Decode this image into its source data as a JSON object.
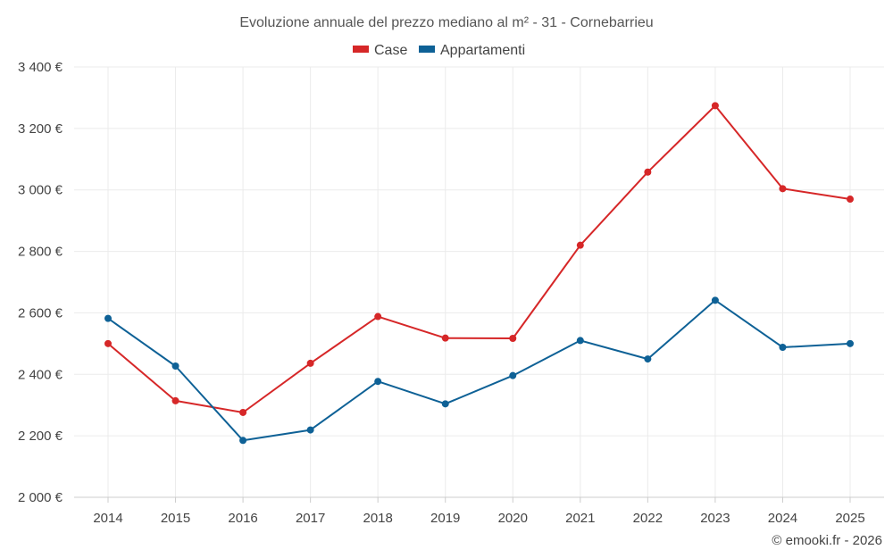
{
  "chart_data": {
    "type": "line",
    "title": "Evoluzione annuale del prezzo mediano al m² - 31 - Cornebarrieu",
    "categories": [
      "2014",
      "2015",
      "2016",
      "2017",
      "2018",
      "2019",
      "2020",
      "2021",
      "2022",
      "2023",
      "2024",
      "2025"
    ],
    "series": [
      {
        "name": "Case",
        "color": "#d62728",
        "values": [
          2500,
          2314,
          2276,
          2436,
          2588,
          2518,
          2517,
          2820,
          3058,
          3274,
          3004,
          2970
        ]
      },
      {
        "name": "Appartamenti",
        "color": "#0e6196",
        "values": [
          2582,
          2427,
          2185,
          2219,
          2377,
          2304,
          2396,
          2510,
          2450,
          2641,
          2488,
          2500
        ]
      }
    ],
    "ylim": [
      2000,
      3400
    ],
    "yticks": [
      2000,
      2200,
      2400,
      2600,
      2800,
      3000,
      3200,
      3400
    ],
    "ytick_labels": [
      "2 000 €",
      "2 200 €",
      "2 400 €",
      "2 600 €",
      "2 800 €",
      "3 000 €",
      "3 200 €",
      "3 400 €"
    ],
    "grid": true,
    "legend_position": "top-center"
  },
  "credit": "© emooki.fr - 2026"
}
